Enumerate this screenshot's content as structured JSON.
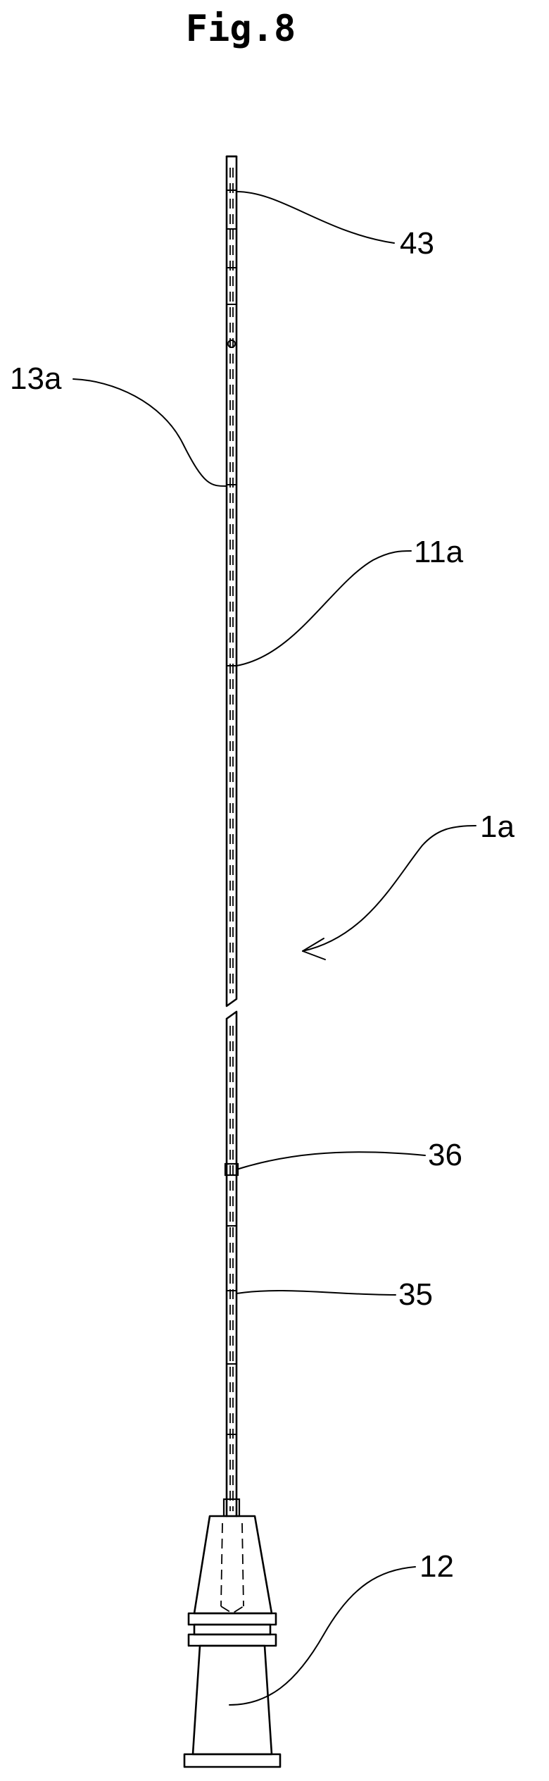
{
  "figure": {
    "title": "Fig.8"
  },
  "labels": {
    "ref_43": "43",
    "ref_13a": "13a",
    "ref_11a": "11a",
    "ref_1a": "1a",
    "ref_36": "36",
    "ref_35": "35",
    "ref_12": "12"
  }
}
